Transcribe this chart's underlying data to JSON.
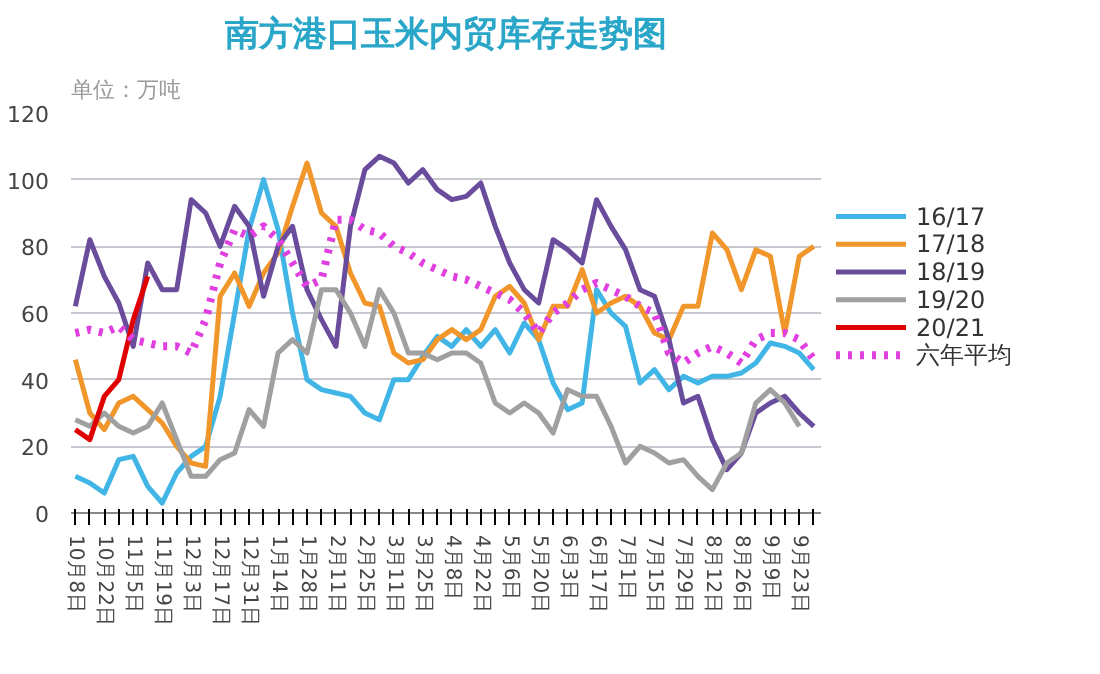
{
  "chart_data": {
    "type": "line",
    "title": "南方港口玉米内贸库存走势图",
    "ylabel": "单位：万吨",
    "categories": [
      "10月8日",
      null,
      "10月22日",
      null,
      "11月5日",
      null,
      "11月19日",
      null,
      "12月3日",
      null,
      "12月17日",
      null,
      "12月31日",
      null,
      "1月14日",
      null,
      "1月28日",
      null,
      "2月11日",
      null,
      "2月25日",
      null,
      "3月11日",
      null,
      "3月25日",
      null,
      "4月8日",
      null,
      "4月22日",
      null,
      "5月6日",
      null,
      "5月20日",
      null,
      "6月3日",
      null,
      "6月17日",
      null,
      "7月1日",
      null,
      "7月15日",
      null,
      "7月29日",
      null,
      "8月12日",
      null,
      "8月26日",
      null,
      "9月9日",
      null,
      "9月23日",
      null
    ],
    "series": [
      {
        "name": "16/17",
        "color": "#41b6e6",
        "values": [
          11,
          9,
          6,
          16,
          17,
          8,
          3,
          12,
          17,
          20,
          35,
          60,
          85,
          100,
          85,
          60,
          40,
          37,
          36,
          35,
          30,
          28,
          40,
          40,
          47,
          53,
          50,
          55,
          50,
          55,
          48,
          57,
          52,
          39,
          31,
          33,
          67,
          60,
          56,
          39,
          43,
          37,
          41,
          39,
          41,
          41,
          42,
          45,
          51,
          50,
          48,
          43
        ]
      },
      {
        "name": "17/18",
        "color": "#f0962a",
        "values": [
          46,
          30,
          25,
          33,
          35,
          31,
          27,
          20,
          15,
          14,
          65,
          72,
          62,
          72,
          78,
          92,
          105,
          90,
          86,
          72,
          63,
          62,
          48,
          45,
          46,
          52,
          55,
          52,
          55,
          65,
          68,
          63,
          52,
          62,
          62,
          73,
          60,
          63,
          65,
          62,
          54,
          52,
          62,
          62,
          84,
          79,
          67,
          79,
          77,
          54,
          77,
          80
        ]
      },
      {
        "name": "18/19",
        "color": "#6a4c9c",
        "values": [
          62,
          82,
          71,
          63,
          50,
          75,
          67,
          67,
          94,
          90,
          80,
          92,
          86,
          65,
          80,
          86,
          67,
          58,
          50,
          86,
          103,
          107,
          105,
          99,
          103,
          97,
          94,
          95,
          99,
          86,
          75,
          67,
          63,
          82,
          79,
          75,
          94,
          86,
          79,
          67,
          65,
          52,
          33,
          35,
          22,
          13,
          18,
          30,
          33,
          35,
          30,
          26
        ]
      },
      {
        "name": "19/20",
        "color": "#a0a0a0",
        "values": [
          28,
          26,
          30,
          26,
          24,
          26,
          33,
          22,
          11,
          11,
          16,
          18,
          31,
          26,
          48,
          52,
          48,
          67,
          67,
          60,
          50,
          67,
          60,
          48,
          48,
          46,
          48,
          48,
          45,
          33,
          30,
          33,
          30,
          24,
          37,
          35,
          35,
          26,
          15,
          20,
          18,
          15,
          16,
          11,
          7,
          15,
          18,
          33,
          37,
          33,
          26,
          null
        ]
      },
      {
        "name": "20/21",
        "color": "#e00000",
        "values": [
          25,
          22,
          35,
          40,
          58,
          71,
          null,
          null,
          null,
          null,
          null,
          null,
          null,
          null,
          null,
          null,
          null,
          null,
          null,
          null,
          null,
          null,
          null,
          null,
          null,
          null,
          null,
          null,
          null,
          null,
          null,
          null,
          null,
          null,
          null,
          null,
          null,
          null,
          null,
          null,
          null,
          null,
          null,
          null,
          null,
          null,
          null,
          null,
          null,
          null,
          null,
          null
        ]
      },
      {
        "name": "六年平均",
        "color": "#e040e0",
        "line_style": "dotted",
        "values": [
          54,
          55,
          54,
          56,
          52,
          51,
          50,
          50,
          48,
          58,
          75,
          85,
          83,
          86,
          82,
          75,
          68,
          70,
          88,
          88,
          85,
          84,
          80,
          78,
          75,
          73,
          71,
          70,
          68,
          66,
          64,
          60,
          54,
          60,
          63,
          67,
          69,
          67,
          65,
          62,
          60,
          48,
          45,
          48,
          50,
          48,
          45,
          52,
          54,
          54,
          52,
          46
        ]
      }
    ],
    "ylim": [
      0,
      120
    ],
    "yticks": [
      0,
      20,
      40,
      60,
      80,
      100,
      120
    ],
    "grid": "y",
    "legend": "right",
    "line_style": "solid"
  }
}
